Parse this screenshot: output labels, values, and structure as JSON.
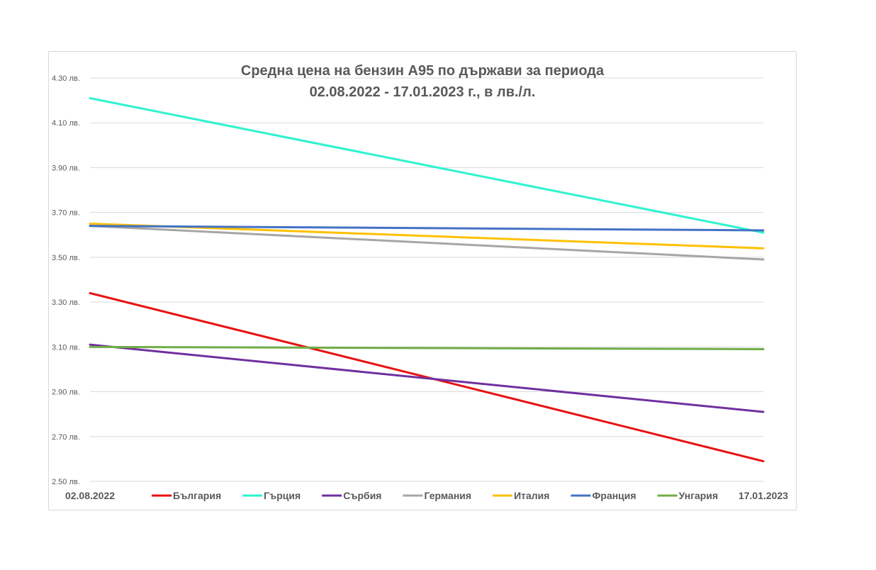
{
  "chart_data": {
    "type": "line",
    "title_line1": "Средна цена на бензин А95 по държави за периода",
    "title_line2": "02.08.2022 - 17.01.2023 г., в лв./л.",
    "x": [
      "02.08.2022",
      "17.01.2023"
    ],
    "ylim": [
      2.5,
      4.3
    ],
    "yticks": [
      "2.50 лв.",
      "2.70 лв.",
      "2.90 лв.",
      "3.10 лв.",
      "3.30 лв.",
      "3.50 лв.",
      "3.70 лв.",
      "3.90 лв.",
      "4.10 лв.",
      "4.30 лв."
    ],
    "ytick_values": [
      2.5,
      2.7,
      2.9,
      3.1,
      3.3,
      3.5,
      3.7,
      3.9,
      4.1,
      4.3
    ],
    "grid": true,
    "legend_position": "bottom",
    "series": [
      {
        "name": "България",
        "color": "#e81010",
        "values": [
          3.34,
          2.59
        ]
      },
      {
        "name": "Гърция",
        "color": "#2ef2d0",
        "values": [
          4.21,
          3.61
        ]
      },
      {
        "name": "Сърбия",
        "color": "#7030a0",
        "values": [
          3.11,
          2.81
        ]
      },
      {
        "name": "Германия",
        "color": "#a6a6a6",
        "values": [
          3.64,
          3.49
        ]
      },
      {
        "name": "Италия",
        "color": "#ffc000",
        "values": [
          3.65,
          3.54
        ]
      },
      {
        "name": "Франция",
        "color": "#4472c4",
        "values": [
          3.64,
          3.62
        ]
      },
      {
        "name": "Унгария",
        "color": "#70ad47",
        "values": [
          3.1,
          3.09
        ]
      }
    ]
  }
}
